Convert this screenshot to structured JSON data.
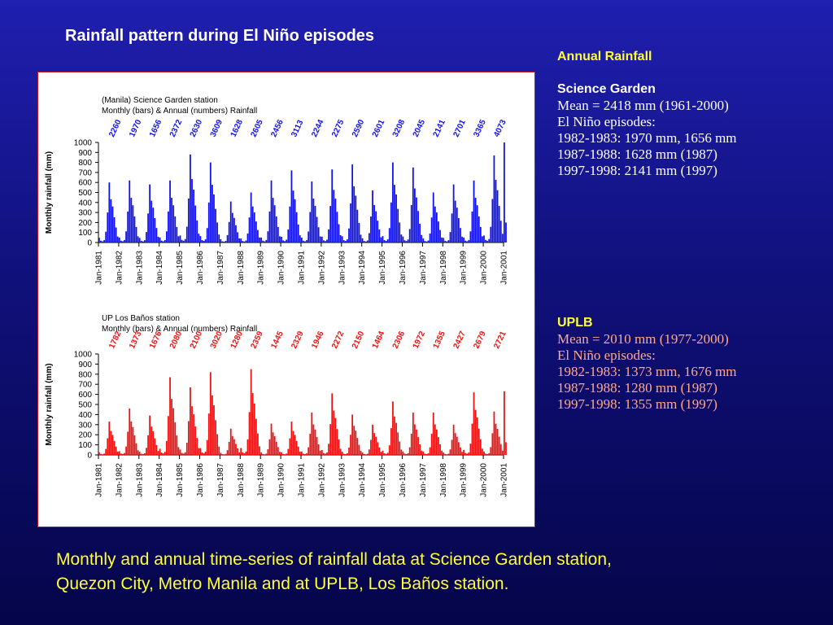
{
  "slide": {
    "title": "Rainfall pattern during El Niño episodes",
    "caption_line1": "Monthly and annual time-series of rainfall data at Science Garden station,",
    "caption_line2": "Quezon City, Metro Manila  and at UPLB, Los Baños station."
  },
  "side_text": {
    "annual_heading": "Annual Rainfall",
    "science_garden": {
      "heading": "Science Garden",
      "mean": "Mean   =   2418 mm (1961-2000)",
      "episodes_label": "El Niño episodes:",
      "ep1": "1982-1983:  1970 mm, 1656 mm",
      "ep2": "1987-1988:  1628 mm (1987)",
      "ep3": "1997-1998:  2141 mm (1997)"
    },
    "uplb": {
      "heading": "UPLB",
      "mean": "Mean =  2010 mm (1977-2000)",
      "episodes_label": "El Niño episodes:",
      "ep1": "1982-1983: 1373 mm, 1676 mm",
      "ep2": "1987-1988: 1280 mm  (1987)",
      "ep3": "1997-1998: 1355 mm  (1997)"
    }
  },
  "colors": {
    "science_garden": "#1010ee",
    "uplb": "#ee1111",
    "yellow": "#ffff33",
    "salmon": "#ffaa88"
  },
  "chart_data": [
    {
      "type": "bar",
      "title": "(Manila) Science Garden station",
      "subtitle": "Monthly  (bars) & Annual (numbers) Rainfall",
      "ylabel": "Monthly rainfall (mm)",
      "ylim": [
        0,
        1000
      ],
      "yticks": [
        "1000",
        "900",
        "800",
        "700",
        "600",
        "500",
        "400",
        "300",
        "200",
        "100",
        "0"
      ],
      "xticks": [
        "Jan-1981",
        "Jan-1982",
        "Jan-1983",
        "Jan-1984",
        "Jan-1985",
        "Jan-1986",
        "Jan-1987",
        "Jan-1988",
        "Jan-1989",
        "Jan-1990",
        "Jan-1991",
        "Jan-1992",
        "Jan-1993",
        "Jan-1994",
        "Jan-1995",
        "Jan-1996",
        "Jan-1997",
        "Jan-1998",
        "Jan-1999",
        "Jan-2000",
        "Jan-2001"
      ],
      "annual_labels": [
        "2260",
        "1970",
        "1656",
        "2372",
        "2630",
        "3609",
        "1628",
        "2605",
        "2456",
        "3113",
        "2244",
        "2275",
        "2590",
        "2601",
        "3208",
        "2045",
        "2141",
        "2701",
        "3365",
        "4073"
      ],
      "monthly_peaks": [
        600,
        620,
        580,
        620,
        880,
        800,
        410,
        500,
        620,
        720,
        610,
        730,
        780,
        520,
        800,
        750,
        500,
        580,
        620,
        870,
        1000
      ],
      "color": "#1010ee"
    },
    {
      "type": "bar",
      "title": "UP Los Baños station",
      "subtitle": "Monthly  (bars) & Annual (numbers) Rainfall",
      "ylabel": "Monthly rainfall (mm)",
      "ylim": [
        0,
        1000
      ],
      "yticks": [
        "1000",
        "900",
        "800",
        "700",
        "600",
        "500",
        "400",
        "300",
        "200",
        "100",
        "0"
      ],
      "xticks": [
        "Jan-1981",
        "Jan-1982",
        "Jan-1983",
        "Jan-1984",
        "Jan-1985",
        "Jan-1986",
        "Jan-1987",
        "Jan-1988",
        "Jan-1989",
        "Jan-1990",
        "Jan-1991",
        "Jan-1992",
        "Jan-1993",
        "Jan-1994",
        "Jan-1995",
        "Jan-1996",
        "Jan-1997",
        "Jan-1998",
        "Jan-1999",
        "Jan-2000",
        "Jan-2001"
      ],
      "annual_labels": [
        "1782",
        "1373",
        "1676",
        "2080",
        "2100",
        "3020",
        "1280",
        "2359",
        "1445",
        "2329",
        "1946",
        "2272",
        "2150",
        "1464",
        "2306",
        "1972",
        "1355",
        "2427",
        "2679",
        "2721"
      ],
      "monthly_peaks": [
        330,
        460,
        390,
        770,
        670,
        820,
        260,
        850,
        310,
        330,
        420,
        610,
        400,
        300,
        530,
        420,
        420,
        300,
        620,
        430,
        630
      ],
      "color": "#ee1111"
    }
  ]
}
